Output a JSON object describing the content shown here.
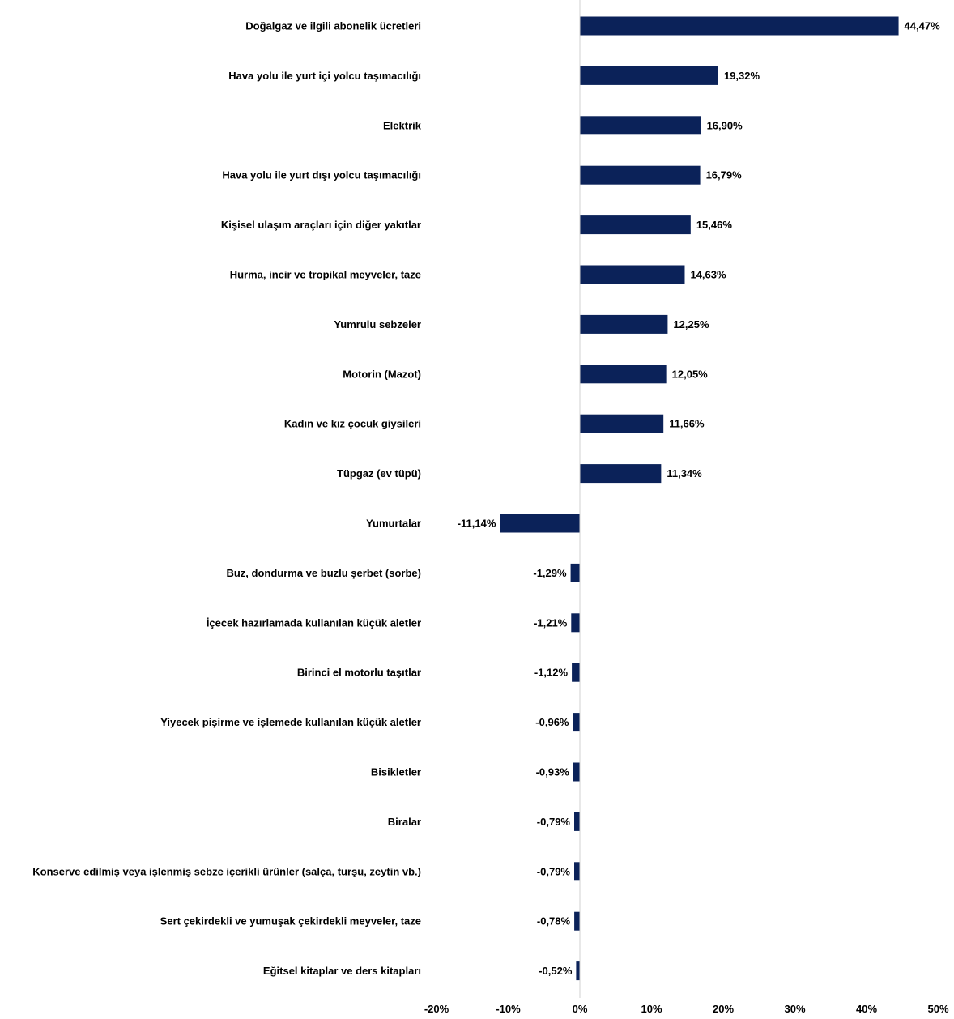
{
  "colors": {
    "bar": "#0b2259",
    "axis": "#d0d0d0",
    "text": "#000000"
  },
  "chart_data": {
    "type": "bar",
    "orientation": "horizontal",
    "title": "",
    "xlabel": "",
    "ylabel": "",
    "xlim": [
      -20,
      50
    ],
    "grid": false,
    "ticks": [
      "-20%",
      "-10%",
      "0%",
      "10%",
      "20%",
      "30%",
      "40%",
      "50%"
    ],
    "tick_values": [
      -20,
      -10,
      0,
      10,
      20,
      30,
      40,
      50
    ],
    "categories": [
      "Doğalgaz ve ilgili abonelik ücretleri",
      "Hava yolu ile yurt içi yolcu taşımacılığı",
      "Elektrik",
      "Hava yolu ile yurt dışı yolcu taşımacılığı",
      "Kişisel ulaşım araçları için diğer yakıtlar",
      "Hurma, incir ve tropikal meyveler, taze",
      "Yumrulu sebzeler",
      "Motorin (Mazot)",
      "Kadın ve kız çocuk giysileri",
      "Tüpgaz (ev tüpü)",
      "Yumurtalar",
      "Buz, dondurma ve buzlu şerbet (sorbe)",
      "İçecek hazırlamada kullanılan küçük aletler",
      "Birinci el motorlu taşıtlar",
      "Yiyecek pişirme ve işlemede kullanılan küçük aletler",
      "Bisikletler",
      "Biralar",
      "Konserve edilmiş veya işlenmiş sebze içerikli ürünler (salça, turşu, zeytin vb.)",
      "Sert çekirdekli ve yumuşak çekirdekli meyveler, taze",
      "Eğitsel kitaplar ve ders kitapları"
    ],
    "values": [
      44.47,
      19.32,
      16.9,
      16.79,
      15.46,
      14.63,
      12.25,
      12.05,
      11.66,
      11.34,
      -11.14,
      -1.29,
      -1.21,
      -1.12,
      -0.96,
      -0.93,
      -0.79,
      -0.79,
      -0.78,
      -0.52
    ],
    "value_labels": [
      "44,47%",
      "19,32%",
      "16,90%",
      "16,79%",
      "15,46%",
      "14,63%",
      "12,25%",
      "12,05%",
      "11,66%",
      "11,34%",
      "-11,14%",
      "-1,29%",
      "-1,21%",
      "-1,12%",
      "-0,96%",
      "-0,93%",
      "-0,79%",
      "-0,79%",
      "-0,78%",
      "-0,52%"
    ]
  }
}
